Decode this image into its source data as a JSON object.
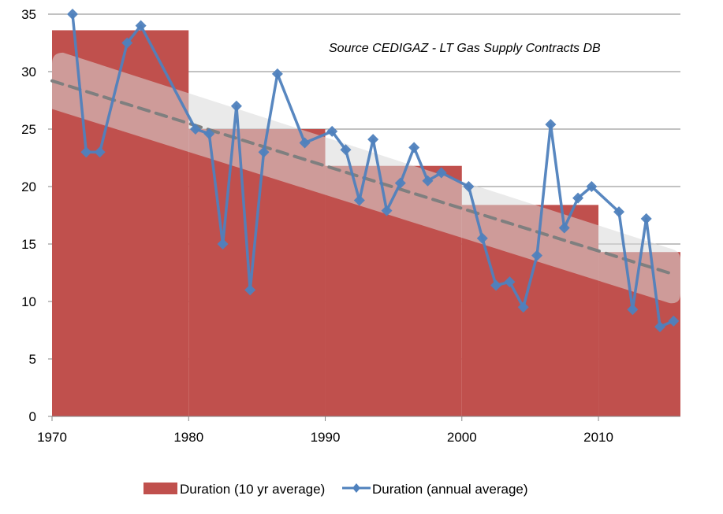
{
  "chart_data": {
    "type": "bar",
    "title": "",
    "annotation": "Source CEDIGAZ - LT Gas Supply Contracts DB",
    "xlabel": "",
    "ylabel": "",
    "xlim": [
      1970,
      2016
    ],
    "ylim": [
      0,
      35
    ],
    "x_ticks": [
      1970,
      1980,
      1990,
      2000,
      2010
    ],
    "x_tick_labels": [
      "1970",
      "1980",
      "1990",
      "2000",
      "2010"
    ],
    "y_ticks": [
      0,
      5,
      10,
      15,
      20,
      25,
      30,
      35
    ],
    "y_tick_labels": [
      "0",
      "5",
      "10",
      "15",
      "20",
      "25",
      "30",
      "35"
    ],
    "grid": "horizontal",
    "legend_position": "bottom",
    "colors": {
      "bars": "#C0504D",
      "line": "#4F81BD",
      "trend_band": "#D9D9D9",
      "trend_line": "#7F7F7F",
      "grid": "#868686"
    },
    "series": [
      {
        "name": "Duration (10 yr average)",
        "type": "step-bar",
        "segments": [
          {
            "start": 1970,
            "end": 1980,
            "value": 33.6
          },
          {
            "start": 1980,
            "end": 1990,
            "value": 25.0
          },
          {
            "start": 1990,
            "end": 2000,
            "value": 21.8
          },
          {
            "start": 2000,
            "end": 2010,
            "value": 18.4
          },
          {
            "start": 2010,
            "end": 2016,
            "value": 14.3
          }
        ]
      },
      {
        "name": "Duration (annual average)",
        "type": "line",
        "marker": "diamond",
        "points": [
          {
            "x": 1971.5,
            "y": 35.0
          },
          {
            "x": 1972.5,
            "y": 23.0
          },
          {
            "x": 1973.5,
            "y": 23.0
          },
          {
            "x": 1975.5,
            "y": 32.5
          },
          {
            "x": 1976.5,
            "y": 34.0
          },
          {
            "x": 1980.5,
            "y": 25.0
          },
          {
            "x": 1981.5,
            "y": 24.6
          },
          {
            "x": 1982.5,
            "y": 15.0
          },
          {
            "x": 1983.5,
            "y": 27.0
          },
          {
            "x": 1984.5,
            "y": 11.0
          },
          {
            "x": 1985.5,
            "y": 23.0
          },
          {
            "x": 1986.5,
            "y": 29.8
          },
          {
            "x": 1988.5,
            "y": 23.8
          },
          {
            "x": 1990.5,
            "y": 24.8
          },
          {
            "x": 1991.5,
            "y": 23.2
          },
          {
            "x": 1992.5,
            "y": 18.8
          },
          {
            "x": 1993.5,
            "y": 24.1
          },
          {
            "x": 1994.5,
            "y": 17.9
          },
          {
            "x": 1995.5,
            "y": 20.3
          },
          {
            "x": 1996.5,
            "y": 23.4
          },
          {
            "x": 1997.5,
            "y": 20.5
          },
          {
            "x": 1998.5,
            "y": 21.2
          },
          {
            "x": 2000.5,
            "y": 20.0
          },
          {
            "x": 2001.5,
            "y": 15.5
          },
          {
            "x": 2002.5,
            "y": 11.4
          },
          {
            "x": 2003.5,
            "y": 11.7
          },
          {
            "x": 2004.5,
            "y": 9.5
          },
          {
            "x": 2005.5,
            "y": 14.0
          },
          {
            "x": 2006.5,
            "y": 25.4
          },
          {
            "x": 2007.5,
            "y": 16.4
          },
          {
            "x": 2008.5,
            "y": 19.0
          },
          {
            "x": 2009.5,
            "y": 20.0
          },
          {
            "x": 2011.5,
            "y": 17.8
          },
          {
            "x": 2012.5,
            "y": 9.3
          },
          {
            "x": 2013.5,
            "y": 17.2
          },
          {
            "x": 2014.5,
            "y": 7.8
          },
          {
            "x": 2015.5,
            "y": 8.3
          }
        ]
      },
      {
        "name": "Trend (linear, dashed)",
        "type": "trendline",
        "start": {
          "x": 1970,
          "y": 29.2
        },
        "end": {
          "x": 2015.4,
          "y": 12.4
        },
        "band_halfwidth": 2.45
      }
    ]
  }
}
